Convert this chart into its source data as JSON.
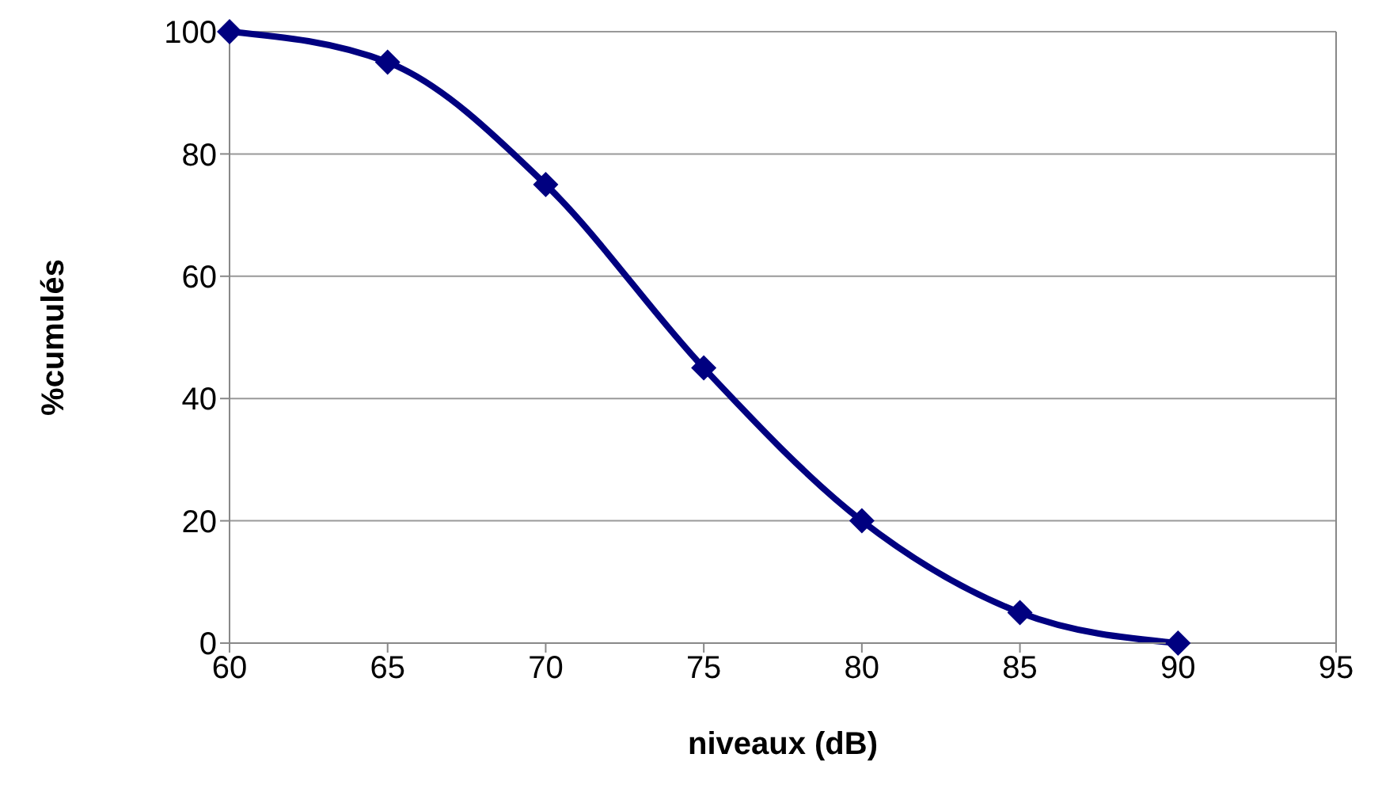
{
  "chart_data": {
    "type": "line",
    "xlabel": "niveaux (dB)",
    "ylabel": "%cumulés",
    "x": [
      60,
      65,
      70,
      75,
      80,
      85,
      90
    ],
    "series": [
      {
        "color": "#000080",
        "values": [
          100,
          95,
          75,
          45,
          20,
          5,
          0
        ]
      }
    ],
    "xlim": [
      60,
      95
    ],
    "xticks": [
      60,
      65,
      70,
      75,
      80,
      85,
      90,
      95
    ],
    "ylim": [
      0,
      100
    ],
    "yticks": [
      0,
      20,
      40,
      60,
      80,
      100
    ],
    "grid": "y",
    "legend": false,
    "marker": "diamond",
    "line_style": "solid"
  }
}
